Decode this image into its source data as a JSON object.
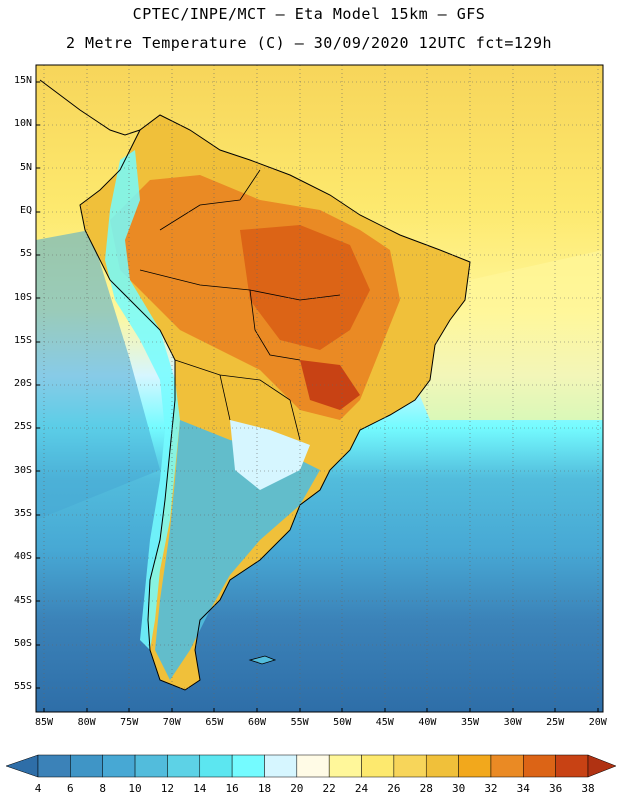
{
  "header": {
    "line1": "CPTEC/INPE/MCT –  Eta Model 15km – GFS",
    "line2": "2 Metre Temperature (C) – 30/09/2020 12UTC fct=129h"
  },
  "map": {
    "lat_ticks": [
      "15N",
      "10N",
      "5N",
      "EQ",
      "5S",
      "10S",
      "15S",
      "20S",
      "25S",
      "30S",
      "35S",
      "40S",
      "45S",
      "50S",
      "55S"
    ],
    "lon_ticks": [
      "85W",
      "80W",
      "75W",
      "70W",
      "65W",
      "60W",
      "55W",
      "50W",
      "45W",
      "40W",
      "35W",
      "30W",
      "25W",
      "20W"
    ]
  },
  "colorbar": {
    "labels": [
      "4",
      "6",
      "8",
      "10",
      "12",
      "14",
      "16",
      "18",
      "20",
      "22",
      "24",
      "26",
      "28",
      "30",
      "32",
      "34",
      "36",
      "38"
    ],
    "colors": [
      "#2e6ea8",
      "#3b82b8",
      "#3f95c6",
      "#47a8d4",
      "#52bcdc",
      "#5dd2e6",
      "#5ce6f0",
      "#74fbff",
      "#d6f6ff",
      "#fffbe6",
      "#fff79a",
      "#fde96e",
      "#f7d55a",
      "#f0c03a",
      "#f2a81c",
      "#ea8a24",
      "#dc6416",
      "#c84214",
      "#b03212"
    ]
  }
}
